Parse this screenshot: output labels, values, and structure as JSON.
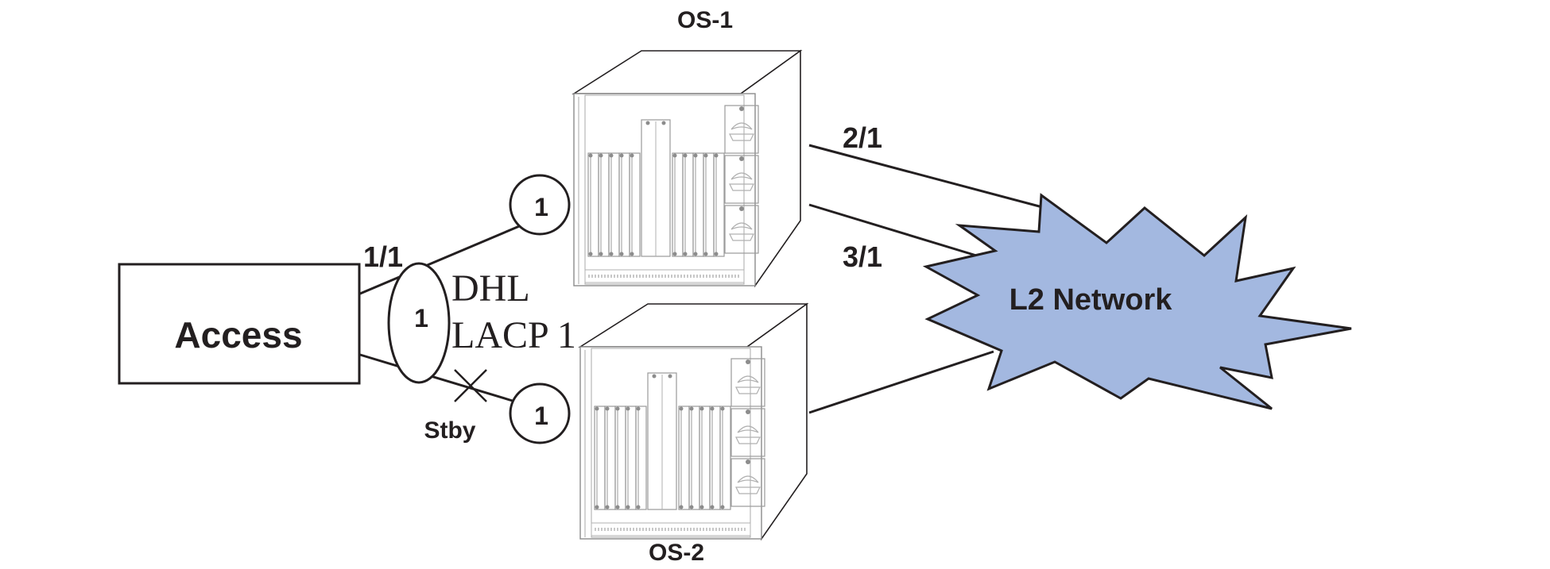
{
  "access": {
    "label": "Access"
  },
  "switches": [
    {
      "label": "OS-1"
    },
    {
      "label": "OS-2"
    }
  ],
  "ports": {
    "p1_1": "1/1",
    "p2_1": "2/1",
    "p3_1": "3/1"
  },
  "lag_label": {
    "line1": "DHL",
    "line2": "LACP 1"
  },
  "circles": {
    "lag": "1",
    "os1": "1",
    "os2": "1"
  },
  "standby": "Stby",
  "network": {
    "label": "L2 Network",
    "color": "#a3b8e0"
  }
}
